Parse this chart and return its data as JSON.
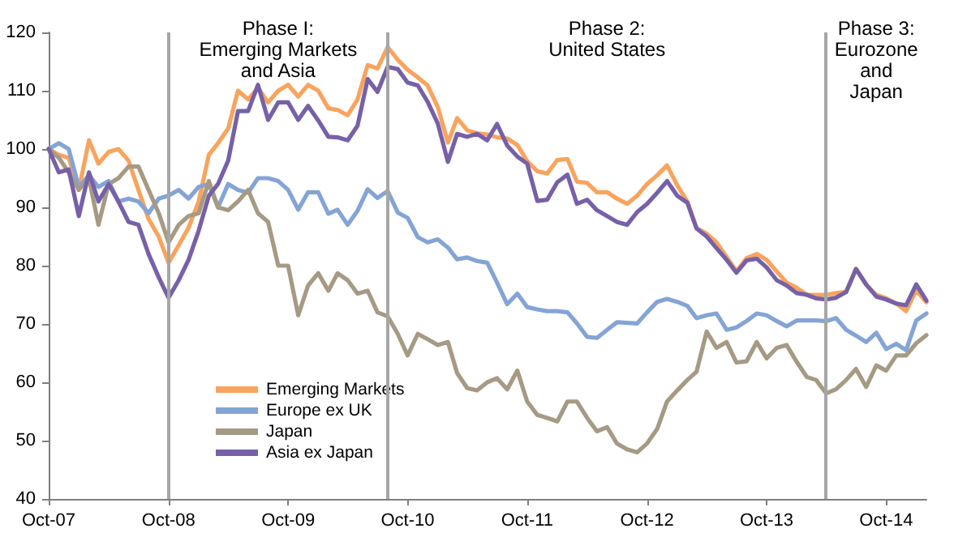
{
  "chart_data": {
    "type": "line",
    "marker": "none",
    "grid": false,
    "legend": "bottom left",
    "x": [
      "2007-10",
      "2007-11",
      "2007-12",
      "2008-01",
      "2008-02",
      "2008-03",
      "2008-04",
      "2008-05",
      "2008-06",
      "2008-07",
      "2008-08",
      "2008-09",
      "2008-10",
      "2008-11",
      "2008-12",
      "2009-01",
      "2009-02",
      "2009-03",
      "2009-04",
      "2009-05",
      "2009-06",
      "2009-07",
      "2009-08",
      "2009-09",
      "2009-10",
      "2009-11",
      "2009-12",
      "2010-01",
      "2010-02",
      "2010-03",
      "2010-04",
      "2010-05",
      "2010-06",
      "2010-07",
      "2010-08",
      "2010-09",
      "2010-10",
      "2010-11",
      "2010-12",
      "2011-01",
      "2011-02",
      "2011-03",
      "2011-04",
      "2011-05",
      "2011-06",
      "2011-07",
      "2011-08",
      "2011-09",
      "2011-10",
      "2011-11",
      "2011-12",
      "2012-01",
      "2012-02",
      "2012-03",
      "2012-04",
      "2012-05",
      "2012-06",
      "2012-07",
      "2012-08",
      "2012-09",
      "2012-10",
      "2012-11",
      "2012-12",
      "2013-01",
      "2013-02",
      "2013-03",
      "2013-04",
      "2013-05",
      "2013-06",
      "2013-07",
      "2013-08",
      "2013-09",
      "2013-10",
      "2013-11",
      "2013-12",
      "2014-01",
      "2014-02",
      "2014-03",
      "2014-04",
      "2014-05",
      "2014-06",
      "2014-07",
      "2014-08",
      "2014-09",
      "2014-10",
      "2014-11",
      "2014-12",
      "2015-01",
      "2015-02"
    ],
    "xlim": [
      "2007-10",
      "2015-02"
    ],
    "xticks": [
      {
        "value": "2007-10",
        "label": "Oct-07"
      },
      {
        "value": "2008-10",
        "label": "Oct-08"
      },
      {
        "value": "2009-10",
        "label": "Oct-09"
      },
      {
        "value": "2010-10",
        "label": "Oct-10"
      },
      {
        "value": "2011-10",
        "label": "Oct-11"
      },
      {
        "value": "2012-10",
        "label": "Oct-12"
      },
      {
        "value": "2013-10",
        "label": "Oct-13"
      },
      {
        "value": "2014-10",
        "label": "Oct-14"
      }
    ],
    "ylim": [
      40,
      120
    ],
    "yticks": [
      40,
      50,
      60,
      70,
      80,
      90,
      100,
      110,
      120
    ],
    "series": [
      {
        "name": "Emerging Markets",
        "color": "#f8a45e",
        "values": [
          100,
          99,
          98.5,
          93,
          101.5,
          97.5,
          99.5,
          100,
          98,
          93,
          88,
          85,
          80.5,
          83.5,
          86.5,
          91,
          99,
          101,
          103.5,
          110,
          108.5,
          110.5,
          108,
          110,
          111,
          109,
          111,
          110,
          107,
          106.7,
          105.8,
          108.5,
          114.4,
          113.8,
          117.5,
          115.3,
          113.6,
          112.3,
          110.9,
          107.2,
          101.1,
          105.3,
          103.2,
          102.7,
          102.5,
          102,
          101.8,
          100.7,
          97.9,
          96.2,
          95.8,
          98.1,
          98.3,
          94.4,
          94.2,
          92.6,
          92.6,
          91.5,
          90.6,
          92,
          94,
          95.5,
          97.2,
          93.8,
          91,
          86.4,
          85.5,
          84,
          81.5,
          79,
          81.3,
          82,
          81,
          79,
          77.1,
          76.2,
          75,
          75,
          75,
          75.3,
          75.5,
          79.5,
          76.7,
          75,
          74.4,
          73.5,
          72.2,
          75.8,
          73.7
        ]
      },
      {
        "name": "Europe ex UK",
        "color": "#84a4d6",
        "values": [
          100,
          101,
          100,
          93.5,
          95.5,
          93.5,
          94.5,
          91,
          91.5,
          91,
          89,
          91.5,
          92,
          93,
          91.5,
          93.5,
          94,
          90,
          94,
          93,
          92.5,
          95,
          95,
          94.5,
          93,
          89.6,
          92.6,
          92.6,
          88.9,
          89.6,
          87,
          89.4,
          93.1,
          91.6,
          92.8,
          89.1,
          88.2,
          84.9,
          84,
          84.5,
          83.1,
          81.1,
          81.4,
          80.8,
          80.5,
          77.1,
          73.4,
          75.2,
          72.9,
          72.5,
          72.2,
          72.2,
          72,
          70.1,
          67.8,
          67.6,
          69,
          70.3,
          70.2,
          70.1,
          72,
          73.8,
          74.3,
          73.8,
          73.1,
          71,
          71.5,
          71.8,
          69,
          69.4,
          70.5,
          71.8,
          71.5,
          70.5,
          69.6,
          70.6,
          70.6,
          70.6,
          70.5,
          71,
          69,
          68,
          66.9,
          68.5,
          65.7,
          66.6,
          65.5,
          70.6,
          71.8
        ]
      },
      {
        "name": "Japan",
        "color": "#a69a84",
        "values": [
          100,
          98.5,
          96,
          93,
          95,
          87,
          94,
          95,
          97,
          97,
          93,
          89,
          84,
          87,
          88.5,
          89,
          94.5,
          90,
          89.5,
          91,
          93,
          89,
          87.5,
          80,
          80,
          71.5,
          76.6,
          78.7,
          75.7,
          78.7,
          77.5,
          75.2,
          75.7,
          72,
          71.3,
          68.3,
          64.6,
          68.3,
          67.4,
          66.4,
          66.9,
          61.6,
          59,
          58.6,
          60,
          60.7,
          58.8,
          62,
          56.7,
          54.4,
          53.9,
          53.3,
          56.7,
          56.7,
          53.9,
          51.6,
          52.3,
          49.5,
          48.5,
          48,
          49.5,
          52,
          56.7,
          58.6,
          60.4,
          61.8,
          68.7,
          65.9,
          66.9,
          63.4,
          63.6,
          66.9,
          64.1,
          65.9,
          66.4,
          63.5,
          60.9,
          60.4,
          58.1,
          58.8,
          60.4,
          62.3,
          59.2,
          62.9,
          62,
          64.6,
          64.6,
          66.7,
          68.1
        ]
      },
      {
        "name": "Asia ex Japan",
        "color": "#7661a8",
        "values": [
          100,
          96,
          96.5,
          88.5,
          96,
          91,
          94,
          91,
          87.5,
          87,
          82,
          78,
          74.5,
          77.5,
          81,
          86,
          92,
          94,
          98,
          106.5,
          106.5,
          111,
          105,
          108,
          108,
          105,
          107.4,
          104.9,
          102.1,
          102,
          101.5,
          104,
          112,
          109.8,
          114.1,
          113.7,
          111.4,
          110.9,
          108.1,
          104.4,
          97.8,
          102.6,
          102.1,
          102.6,
          101.5,
          104.3,
          100.6,
          98.7,
          97.5,
          91.1,
          91.3,
          94.3,
          95.6,
          90.6,
          91.3,
          89.5,
          88.5,
          87.5,
          87,
          89.2,
          90.6,
          92.5,
          94.5,
          92,
          90.8,
          86.4,
          85,
          83,
          81,
          78.8,
          80.9,
          81.2,
          79.7,
          77.5,
          76.6,
          75.3,
          75,
          74.4,
          74.2,
          74.5,
          75.5,
          79.4,
          76.8,
          74.7,
          74.2,
          73.5,
          73.2,
          76.8,
          74
        ]
      }
    ],
    "ref_lines": [
      {
        "axis": "x",
        "value": "2008-10",
        "color": "#a6a6a6"
      },
      {
        "axis": "x",
        "value": "2010-08",
        "color": "#a6a6a6"
      },
      {
        "axis": "x",
        "value": "2014-04",
        "color": "#a6a6a6"
      }
    ],
    "annotations": [
      "Phase I:\nEmerging Markets\nand Asia",
      "Phase 2:\nUnited States",
      "Phase 3:\nEurozone\nand\nJapan"
    ]
  }
}
